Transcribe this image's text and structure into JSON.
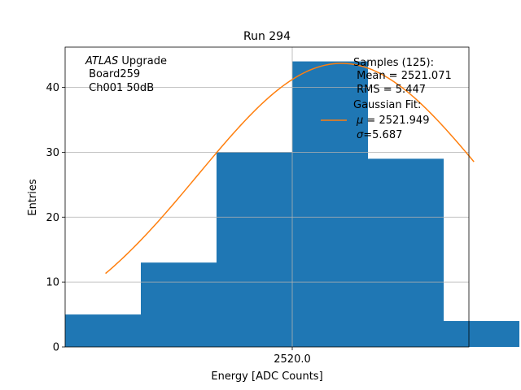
{
  "chart_data": {
    "type": "bar",
    "title": "Run 294",
    "xlabel": "Energy [ADC Counts]",
    "ylabel": "Entries",
    "xlim": [
      2511,
      2527
    ],
    "ylim": [
      0,
      46.2
    ],
    "x_ticks": [
      2520.0
    ],
    "x_tick_labels": [
      "2520.0"
    ],
    "y_ticks": [
      0,
      10,
      20,
      30,
      40
    ],
    "grid": true,
    "bar_color": "#1f77b4",
    "fit_color": "#ff7f0e",
    "histogram": {
      "bin_edges": [
        2511,
        2514,
        2517,
        2520,
        2523,
        2526,
        2529
      ],
      "counts": [
        5,
        13,
        30,
        44,
        29,
        4
      ]
    },
    "gaussian_fit": {
      "mu": 2521.949,
      "sigma": 5.687,
      "amplitude": 43.7,
      "x_range": [
        2512.6,
        2527.2
      ]
    },
    "annotation": {
      "italic": "ATLAS",
      "normal": " Upgrade",
      "line2": " Board259",
      "line3": " Ch001 50dB"
    },
    "legend": {
      "placement": "top-right",
      "samples": {
        "line1": "Samples (125):",
        "line2": " Mean = 2521.071",
        "line3": " RMS = 5.447"
      },
      "fit": {
        "line1": "Gaussian Fit:",
        "mu_symbol": "μ",
        "mu_text": " = 2521.949",
        "sigma_symbol": "σ",
        "sigma_text": "=5.687"
      }
    }
  }
}
